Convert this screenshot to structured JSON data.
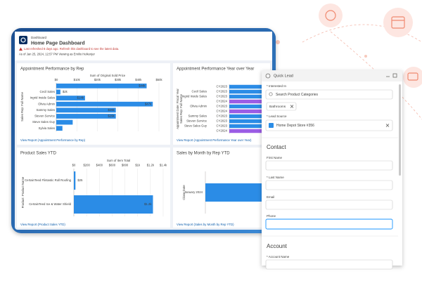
{
  "dashboard": {
    "label": "Dashboard",
    "title": "Home Page Dashboard",
    "warning": "Last refreshed 8 days ago. Refresh this dashboard to see the latest data.",
    "as_of": "As of Jan 25, 2024, 12:57 PM Viewing as Emilio Heikenjer"
  },
  "chart_data": [
    {
      "type": "bar",
      "title": "Appointment Performance by Rep",
      "x_label": "Sum of Original Sold Price",
      "y_label": "Sales Rep: Full Name",
      "categories": [
        null,
        "Cecil Sales",
        "Ingrid Inside Sales",
        "Olivia Admin",
        "Sammy Sales",
        "Steven Service",
        "Steve Sales Guy",
        "Sylvia Sales"
      ],
      "values": [
        44000,
        2000,
        14000,
        47000,
        29000,
        29000,
        8000,
        3000
      ],
      "value_labels": [
        "$44k",
        "$2k",
        "$14k",
        "$47k",
        "$29k",
        "$29k",
        null,
        null
      ],
      "color": "#2b8ce6",
      "xlim": [
        0,
        50000
      ],
      "xticks": [
        {
          "value": 0,
          "label": "$0"
        },
        {
          "value": 10000,
          "label": "$10k"
        },
        {
          "value": 20000,
          "label": "$20k"
        },
        {
          "value": 30000,
          "label": "$30k"
        },
        {
          "value": 40000,
          "label": "$40k"
        },
        {
          "value": 50000,
          "label": "$50k"
        }
      ],
      "grid": true,
      "link": "View Report (Appointment Performance by Rep)"
    },
    {
      "type": "bar",
      "title": "Appointment Performance Year over Year",
      "y_label": "Sales Rep: Full Name",
      "y_label_2": "Appointment Date: Fiscal Year",
      "categories": [
        null,
        "Cecil Sales",
        "Ingrid Inside Sales",
        null,
        "Olivia Admin",
        null,
        "Sammy Sales",
        "Steven Service",
        "Steve Sales Guy",
        null
      ],
      "years": [
        "CY2023",
        "CY2023",
        "CY2023",
        "CY2024",
        "CY2023",
        "CY2024",
        "CY2023",
        "CY2023",
        "CY2023",
        "CY2024"
      ],
      "values": [
        40000,
        26000,
        38000,
        36000,
        40000,
        34000,
        32000,
        33000,
        30000,
        35000
      ],
      "colors": [
        "#2b8ce6",
        "#2b8ce6",
        "#2b8ce6",
        "#9b5de5",
        "#2b8ce6",
        "#9b5de5",
        "#2b8ce6",
        "#2b8ce6",
        "#2b8ce6",
        "#9b5de5"
      ],
      "xlim": [
        0,
        50000
      ],
      "grid": false,
      "link": "View Report (Appointment Performance Year over Year)"
    },
    {
      "type": "bar",
      "title": "Product Sales YTD",
      "x_label": "Sum of Item Total",
      "y_label": "Product: Product Name",
      "categories": [
        "CertainTeed Flintastic Roll Roofing",
        "CertainTeed Ice & Water Shield"
      ],
      "values": [
        25,
        1240
      ],
      "value_labels": [
        "$25",
        "$1.2k"
      ],
      "color": "#2b8ce6",
      "xlim": [
        0,
        1400
      ],
      "xticks": [
        {
          "value": 0,
          "label": "$0"
        },
        {
          "value": 200,
          "label": "$200"
        },
        {
          "value": 400,
          "label": "$400"
        },
        {
          "value": 600,
          "label": "$600"
        },
        {
          "value": 800,
          "label": "$800"
        },
        {
          "value": 1000,
          "label": "$1k"
        },
        {
          "value": 1200,
          "label": "$1.2k"
        },
        {
          "value": 1400,
          "label": "$1.4k"
        }
      ],
      "grid": true,
      "link": "View Report (Product Sales YTD)"
    },
    {
      "type": "bar",
      "title": "Sales by Month by Rep YTD",
      "y_label": "Close Date",
      "categories": [
        "January 2024"
      ],
      "values": [
        30000
      ],
      "color": "#2b8ce6",
      "xlim": [
        0,
        50000
      ],
      "grid": false,
      "link": "View Report (Sales by Month by Rep YTD)"
    }
  ],
  "quick_lead": {
    "title": "Quick Lead",
    "interested_label": "* Interested In",
    "search_placeholder": "Search Product Categories",
    "selected": "Bathrooms",
    "lead_source_label": "* Lead Source",
    "lead_source": "Home Depot Store #356",
    "contact_heading": "Contact",
    "fields": [
      "First Name",
      "* Last Name",
      "Email",
      "Phone"
    ],
    "account_heading": "Account",
    "account_name_label": "* Account Name"
  }
}
